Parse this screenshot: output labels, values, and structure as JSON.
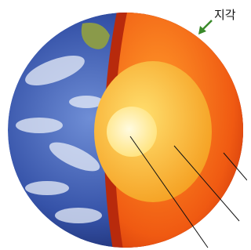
{
  "labels": {
    "crust": "지각"
  }
}
